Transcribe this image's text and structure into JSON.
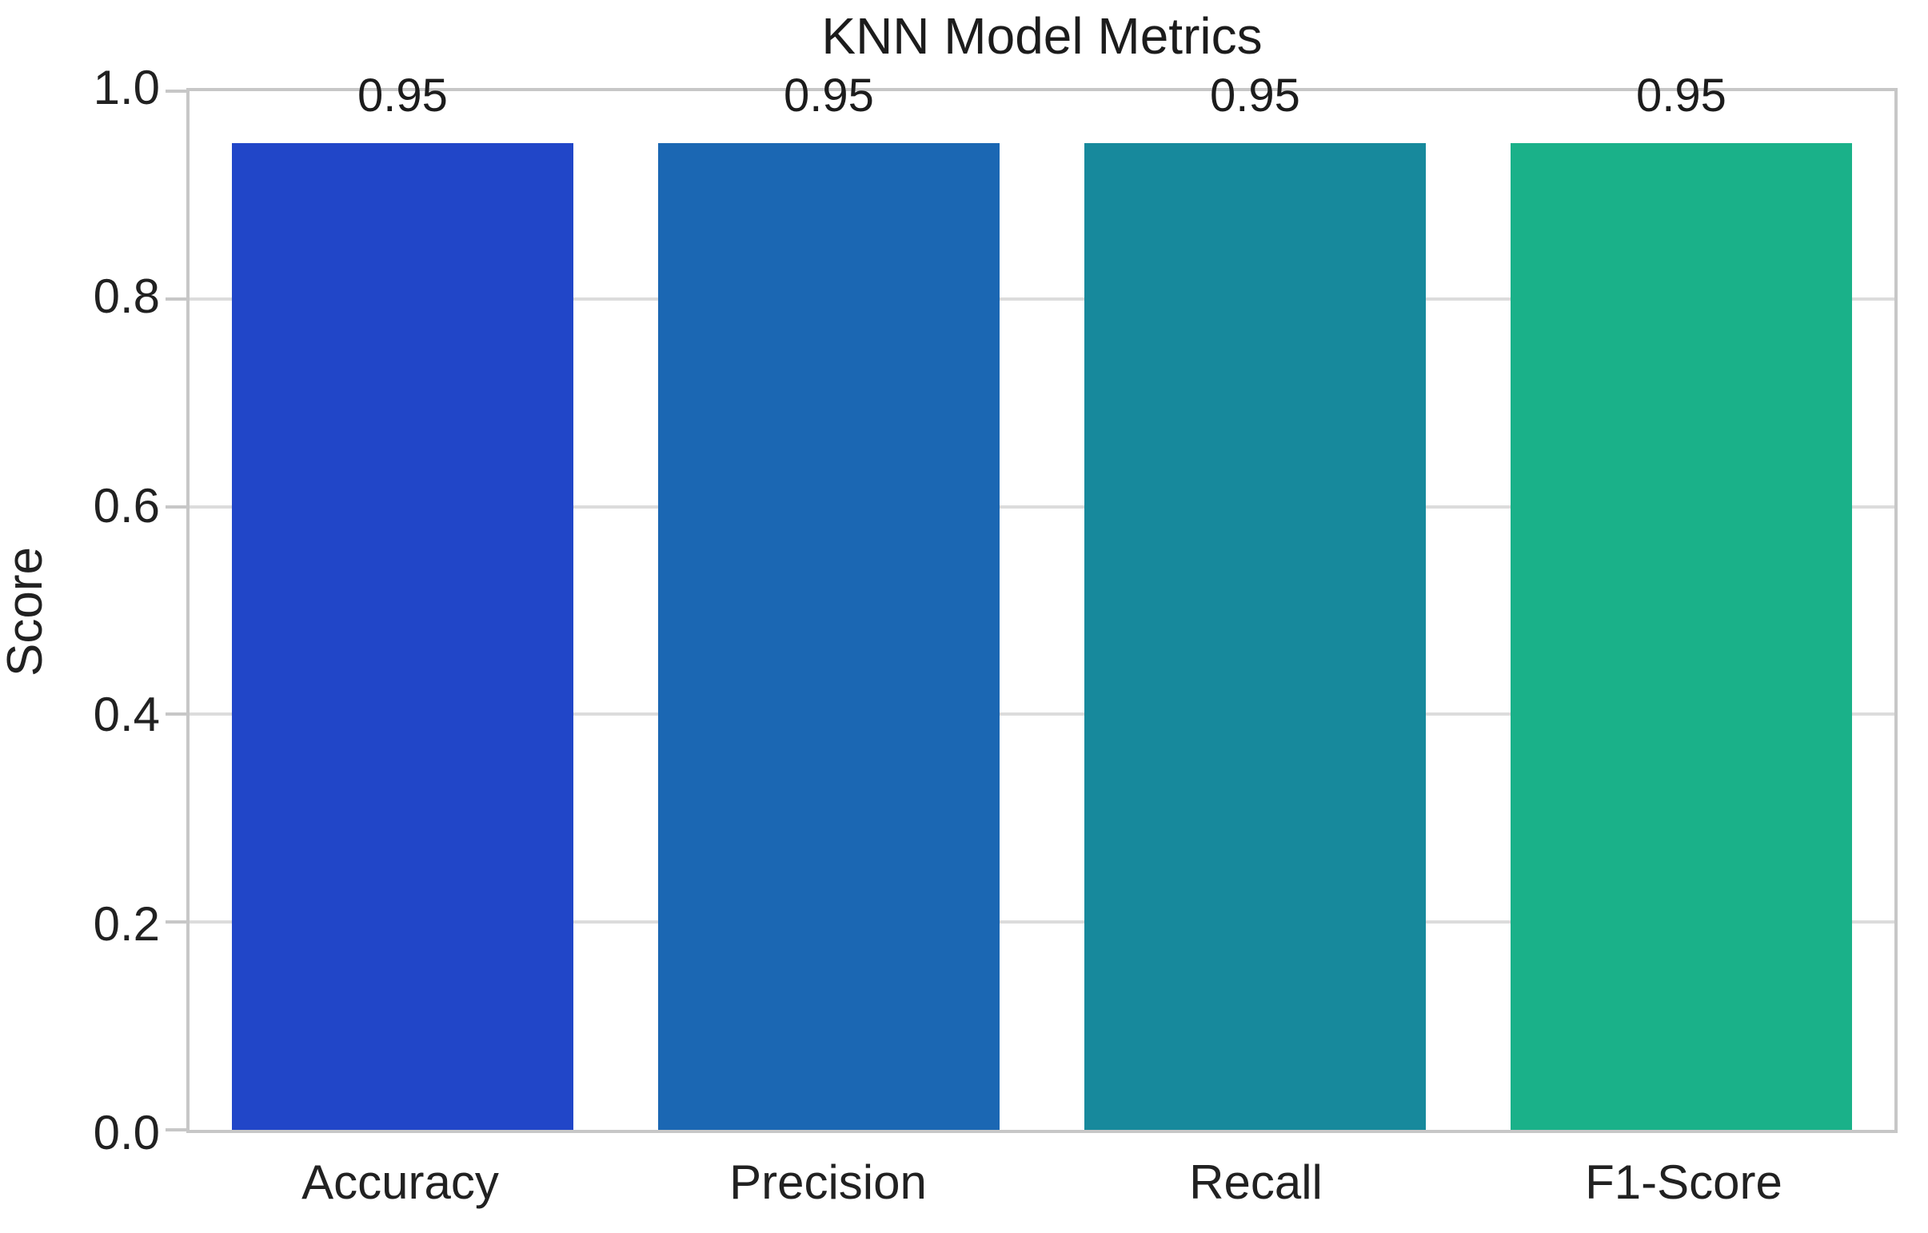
{
  "chart_data": {
    "type": "bar",
    "title": "KNN Model Metrics",
    "xlabel": "",
    "ylabel": "Score",
    "categories": [
      "Accuracy",
      "Precision",
      "Recall",
      "F1-Score"
    ],
    "values": [
      0.95,
      0.95,
      0.95,
      0.95
    ],
    "value_labels": [
      "0.95",
      "0.95",
      "0.95",
      "0.95"
    ],
    "bar_colors": [
      "#2146c8",
      "#1b67b3",
      "#17899c",
      "#1ab189"
    ],
    "ylim": [
      0,
      1
    ],
    "yticks": [
      0.0,
      0.2,
      0.4,
      0.6,
      0.8,
      1.0
    ],
    "ytick_labels": [
      "0.0",
      "0.2",
      "0.4",
      "0.6",
      "0.8",
      "1.0"
    ],
    "grid": "horizontal",
    "legend": "none",
    "bar_width_fraction": 0.8
  },
  "colors": {
    "grid": "#dcdcdc",
    "spine": "#c7c7c7",
    "text": "#212121",
    "background": "#ffffff"
  }
}
